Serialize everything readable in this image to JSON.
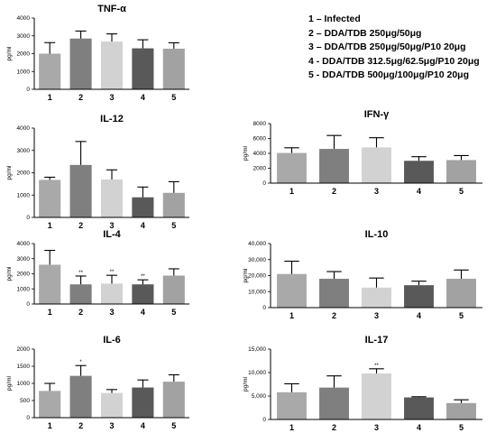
{
  "legend": [
    "1 – Infected",
    "2 – DDA/TDB 250μg/50μg",
    "3 – DDA/TDB 250μg/50μg/P10 20μg",
    "4 - DDA/TDB 312.5μg/62.5μg/P10 20μg",
    "5 - DDA/TDB 500μg/100μg/P10 20μg"
  ],
  "colors": [
    "#a9a9a9",
    "#7f7f7f",
    "#d2d2d2",
    "#595959",
    "#a2a2a2"
  ],
  "chart_data": [
    {
      "id": "tnf-alpha",
      "type": "bar",
      "title": "TNF-α",
      "ylabel": "pg/ml",
      "categories": [
        "1",
        "2",
        "3",
        "4",
        "5"
      ],
      "values": [
        2000,
        2850,
        2680,
        2300,
        2280
      ],
      "errors": [
        620,
        420,
        430,
        480,
        330
      ],
      "annotations": [
        "",
        "",
        "",
        "",
        ""
      ],
      "ylim": [
        0,
        4000
      ],
      "yticks": [
        0,
        1000,
        2000,
        3000,
        4000
      ],
      "yticklabels": [
        "0",
        "1000",
        "2000",
        "3000",
        "4000"
      ]
    },
    {
      "id": "il-12",
      "type": "bar",
      "title": "IL-12",
      "ylabel": "pg/ml",
      "categories": [
        "1",
        "2",
        "3",
        "4",
        "5"
      ],
      "values": [
        1680,
        2350,
        1700,
        900,
        1100
      ],
      "errors": [
        120,
        1050,
        430,
        460,
        500
      ],
      "annotations": [
        "",
        "",
        "",
        "",
        ""
      ],
      "ylim": [
        0,
        4000
      ],
      "yticks": [
        0,
        1000,
        2000,
        3000,
        4000
      ],
      "yticklabels": [
        "0",
        "1000",
        "2000",
        "3000",
        "4000"
      ]
    },
    {
      "id": "ifn-gamma",
      "type": "bar",
      "title": "IFN-γ",
      "ylabel": "pg/ml",
      "categories": [
        "1",
        "2",
        "3",
        "4",
        "5"
      ],
      "values": [
        4050,
        4600,
        4800,
        3000,
        3100
      ],
      "errors": [
        700,
        1800,
        1300,
        550,
        600
      ],
      "annotations": [
        "",
        "",
        "",
        "",
        ""
      ],
      "ylim": [
        0,
        8000
      ],
      "yticks": [
        0,
        2000,
        4000,
        6000,
        8000
      ],
      "yticklabels": [
        "0",
        "2000",
        "4000",
        "6000",
        "8000"
      ]
    },
    {
      "id": "il-4",
      "type": "bar",
      "title": "IL-4",
      "ylabel": "pg/ml",
      "categories": [
        "1",
        "2",
        "3",
        "4",
        "5"
      ],
      "values": [
        2600,
        1300,
        1350,
        1300,
        1880
      ],
      "errors": [
        950,
        550,
        550,
        300,
        450
      ],
      "annotations": [
        "",
        "**",
        "**",
        "**",
        ""
      ],
      "ylim": [
        0,
        4000
      ],
      "yticks": [
        0,
        1000,
        2000,
        3000,
        4000
      ],
      "yticklabels": [
        "0",
        "1000",
        "2000",
        "3000",
        "4000"
      ]
    },
    {
      "id": "il-10",
      "type": "bar",
      "title": "IL-10",
      "ylabel": "pg/ml",
      "categories": [
        "1",
        "2",
        "3",
        "4",
        "5"
      ],
      "values": [
        21000,
        18000,
        12500,
        14000,
        18000
      ],
      "errors": [
        8000,
        4500,
        6000,
        2500,
        5500
      ],
      "annotations": [
        "",
        "",
        "",
        "",
        ""
      ],
      "ylim": [
        0,
        40000
      ],
      "yticks": [
        0,
        10000,
        20000,
        30000,
        40000
      ],
      "yticklabels": [
        "0",
        "10,000",
        "20,000",
        "30,000",
        "40,000"
      ]
    },
    {
      "id": "il-6",
      "type": "bar",
      "title": "IL-6",
      "ylabel": "pg/ml",
      "categories": [
        "1",
        "2",
        "3",
        "4",
        "5"
      ],
      "values": [
        780,
        1220,
        720,
        880,
        1050
      ],
      "errors": [
        220,
        300,
        100,
        220,
        200
      ],
      "annotations": [
        "",
        "*",
        "",
        "",
        ""
      ],
      "ylim": [
        0,
        2000
      ],
      "yticks": [
        0,
        500,
        1000,
        1500,
        2000
      ],
      "yticklabels": [
        "0",
        "500",
        "1000",
        "1500",
        "2000"
      ]
    },
    {
      "id": "il-17",
      "type": "bar",
      "title": "IL-17",
      "ylabel": "pg/ml",
      "categories": [
        "1",
        "2",
        "3",
        "4",
        "5"
      ],
      "values": [
        5800,
        6800,
        9800,
        4700,
        3500
      ],
      "errors": [
        1800,
        2500,
        1000,
        150,
        700
      ],
      "annotations": [
        "",
        "",
        "**",
        "",
        ""
      ],
      "ylim": [
        0,
        15000
      ],
      "yticks": [
        0,
        5000,
        10000,
        15000
      ],
      "yticklabels": [
        "0",
        "5,000",
        "10,000",
        "15,000"
      ]
    }
  ]
}
